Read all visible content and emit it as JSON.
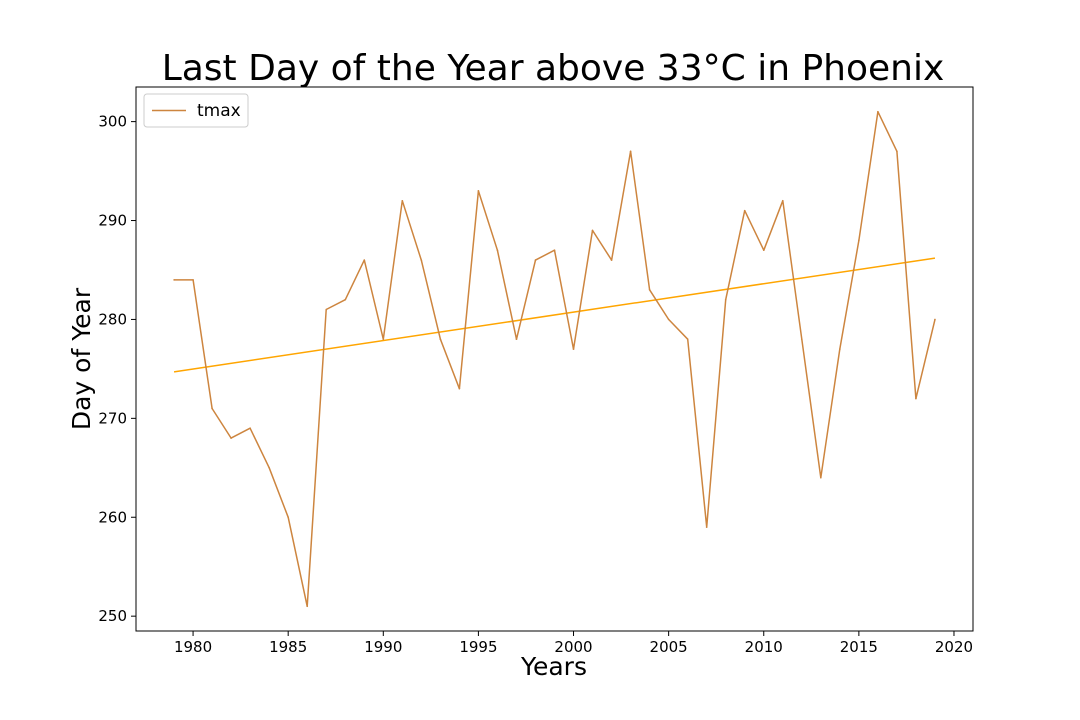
{
  "chart_data": {
    "type": "line",
    "title": "Last Day of the Year above 33°C in Phoenix",
    "xlabel": "Years",
    "ylabel": "Day of Year",
    "xlim": [
      1977,
      2021
    ],
    "ylim": [
      248.5,
      303.5
    ],
    "x_ticks": [
      1980,
      1985,
      1990,
      1995,
      2000,
      2005,
      2010,
      2015,
      2020
    ],
    "y_ticks": [
      250,
      260,
      270,
      280,
      290,
      300
    ],
    "grid": false,
    "legend_position": "top-left",
    "x": [
      1979,
      1980,
      1981,
      1982,
      1983,
      1984,
      1985,
      1986,
      1987,
      1988,
      1989,
      1990,
      1991,
      1992,
      1993,
      1994,
      1995,
      1996,
      1997,
      1998,
      1999,
      2000,
      2001,
      2002,
      2003,
      2004,
      2005,
      2006,
      2007,
      2008,
      2009,
      2010,
      2011,
      2012,
      2013,
      2014,
      2015,
      2016,
      2017,
      2018,
      2019
    ],
    "series": [
      {
        "name": "tmax",
        "color": "#cd853f",
        "values": [
          284,
          284,
          271,
          268,
          269,
          265,
          260,
          251,
          281,
          282,
          286,
          278,
          292,
          286,
          278,
          273,
          293,
          287,
          278,
          286,
          287,
          277,
          289,
          286,
          297,
          283,
          280,
          278,
          259,
          282,
          291,
          287,
          292,
          278,
          264,
          277,
          288,
          301,
          297,
          272,
          280
        ]
      }
    ],
    "trendline": {
      "color": "#ffa500",
      "x": [
        1979,
        2019
      ],
      "y": [
        274.7,
        286.2
      ]
    }
  }
}
